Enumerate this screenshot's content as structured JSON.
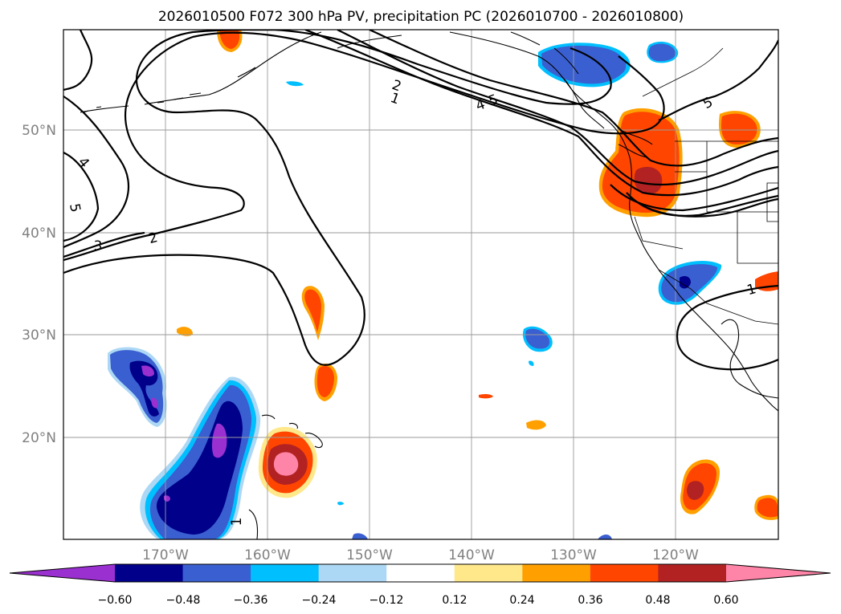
{
  "title": "2026010500 F072 300 hPa PV, precipitation PC (2026010700 - 2026010800)",
  "map": {
    "projection": "PlateCarree",
    "lon_range": [
      -180,
      -110
    ],
    "lat_range": [
      10,
      60
    ],
    "gridlines": true
  },
  "latitude_labels": [
    "50°N",
    "40°N",
    "30°N",
    "20°N"
  ],
  "longitude_labels": [
    "170°W",
    "160°W",
    "150°W",
    "140°W",
    "130°W",
    "120°W"
  ],
  "pv_contour_labels": [
    "3",
    "2",
    "4",
    "5",
    "2",
    "1",
    "4",
    "5",
    "5",
    "1",
    "1"
  ],
  "colorbar": {
    "ticks": [
      "−0.60",
      "−0.48",
      "−0.36",
      "−0.24",
      "−0.12",
      "0.12",
      "0.24",
      "0.36",
      "0.48",
      "0.60"
    ],
    "colors": [
      "#9b30d0",
      "#00008b",
      "#3a5fd0",
      "#00bfff",
      "#add8f5",
      "#ffffff",
      "#ffe88a",
      "#ffa000",
      "#ff4500",
      "#b22222",
      "#ff85a8"
    ],
    "extend": "both"
  },
  "precip_pc_fields": [
    {
      "name": "hawaii-positive",
      "peak": 0.6
    },
    {
      "name": "pacific-nw-positive",
      "peak": 0.48
    },
    {
      "name": "baja-positive",
      "peak": 0.48
    },
    {
      "name": "central-pacific-negative",
      "peak": -0.6
    },
    {
      "name": "west-pacific-negative",
      "peak": -0.6
    },
    {
      "name": "gulf-of-alaska-negative",
      "peak": -0.36
    },
    {
      "name": "southern-california-negative",
      "peak": -0.48
    }
  ]
}
